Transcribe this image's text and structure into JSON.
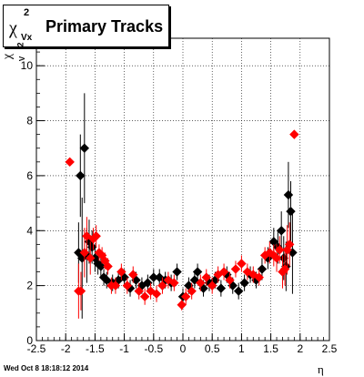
{
  "chart_data": {
    "type": "scatter",
    "title": {
      "symbol": "χ",
      "sup": "2",
      "sub": "Vx",
      "text": "Primary Tracks"
    },
    "ylabel": {
      "symbol": "χ",
      "sup": "2",
      "sub": "V"
    },
    "xlabel": "η",
    "timestamp": "Wed Oct  8 18:18:12 2014",
    "xlim": [
      -2.5,
      2.5
    ],
    "ylim": [
      0,
      11
    ],
    "xticks_labeled": [
      "-2.5",
      "-2",
      "-1.5",
      "-1",
      "-0.5",
      "0",
      "0.5",
      "1",
      "1.5",
      "2",
      "2.5"
    ],
    "yticks_labeled": [
      "0",
      "2",
      "4",
      "6",
      "8",
      "10"
    ],
    "grid": true,
    "marker": "diamond",
    "colors": {
      "black_series": "#000000",
      "red_series": "#ff0000"
    },
    "series": [
      {
        "color": "#000000",
        "points": [
          {
            "x": -1.78,
            "y": 3.2,
            "err": 1.1
          },
          {
            "x": -1.75,
            "y": 6.0,
            "err": 1.5
          },
          {
            "x": -1.72,
            "y": 3.0,
            "err": 2.2
          },
          {
            "x": -1.68,
            "y": 7.0,
            "err": 2.0
          },
          {
            "x": -1.64,
            "y": 3.1,
            "err": 1.0
          },
          {
            "x": -1.6,
            "y": 3.6,
            "err": 0.8
          },
          {
            "x": -1.55,
            "y": 3.4,
            "err": 0.6
          },
          {
            "x": -1.5,
            "y": 3.0,
            "err": 0.5
          },
          {
            "x": -1.45,
            "y": 2.8,
            "err": 0.4
          },
          {
            "x": -1.4,
            "y": 2.7,
            "err": 0.4
          },
          {
            "x": -1.35,
            "y": 2.3,
            "err": 0.3
          },
          {
            "x": -1.3,
            "y": 2.2,
            "err": 0.3
          },
          {
            "x": -1.2,
            "y": 2.1,
            "err": 0.3
          },
          {
            "x": -1.1,
            "y": 2.2,
            "err": 0.3
          },
          {
            "x": -1.0,
            "y": 2.3,
            "err": 0.3
          },
          {
            "x": -0.9,
            "y": 1.9,
            "err": 0.3
          },
          {
            "x": -0.8,
            "y": 2.2,
            "err": 0.3
          },
          {
            "x": -0.7,
            "y": 2.0,
            "err": 0.3
          },
          {
            "x": -0.6,
            "y": 2.1,
            "err": 0.3
          },
          {
            "x": -0.5,
            "y": 2.3,
            "err": 0.3
          },
          {
            "x": -0.4,
            "y": 2.3,
            "err": 0.3
          },
          {
            "x": -0.3,
            "y": 2.2,
            "err": 0.3
          },
          {
            "x": -0.2,
            "y": 2.1,
            "err": 0.3
          },
          {
            "x": -0.1,
            "y": 2.5,
            "err": 0.3
          },
          {
            "x": 0.0,
            "y": 1.6,
            "err": 0.3
          },
          {
            "x": 0.1,
            "y": 2.0,
            "err": 0.3
          },
          {
            "x": 0.2,
            "y": 2.2,
            "err": 0.3
          },
          {
            "x": 0.25,
            "y": 2.5,
            "err": 0.3
          },
          {
            "x": 0.35,
            "y": 1.9,
            "err": 0.3
          },
          {
            "x": 0.45,
            "y": 2.1,
            "err": 0.3
          },
          {
            "x": 0.55,
            "y": 2.2,
            "err": 0.3
          },
          {
            "x": 0.65,
            "y": 1.9,
            "err": 0.3
          },
          {
            "x": 0.75,
            "y": 2.4,
            "err": 0.3
          },
          {
            "x": 0.85,
            "y": 2.0,
            "err": 0.3
          },
          {
            "x": 0.95,
            "y": 1.8,
            "err": 0.3
          },
          {
            "x": 1.05,
            "y": 2.1,
            "err": 0.3
          },
          {
            "x": 1.15,
            "y": 2.4,
            "err": 0.3
          },
          {
            "x": 1.25,
            "y": 2.2,
            "err": 0.3
          },
          {
            "x": 1.35,
            "y": 2.6,
            "err": 0.4
          },
          {
            "x": 1.45,
            "y": 3.0,
            "err": 0.4
          },
          {
            "x": 1.55,
            "y": 3.6,
            "err": 0.5
          },
          {
            "x": 1.62,
            "y": 3.4,
            "err": 0.6
          },
          {
            "x": 1.68,
            "y": 4.0,
            "err": 0.7
          },
          {
            "x": 1.72,
            "y": 3.0,
            "err": 0.8
          },
          {
            "x": 1.76,
            "y": 2.7,
            "err": 0.9
          },
          {
            "x": 1.8,
            "y": 5.3,
            "err": 1.2
          },
          {
            "x": 1.84,
            "y": 4.7,
            "err": 1.1
          },
          {
            "x": 1.87,
            "y": 3.2,
            "err": 1.5
          }
        ]
      },
      {
        "color": "#ff0000",
        "points": [
          {
            "x": -1.93,
            "y": 6.5,
            "err": 0.0
          },
          {
            "x": -1.78,
            "y": 1.8,
            "err": 1.0
          },
          {
            "x": -1.74,
            "y": 1.8,
            "err": 0.7
          },
          {
            "x": -1.68,
            "y": 3.2,
            "err": 0.9
          },
          {
            "x": -1.64,
            "y": 3.8,
            "err": 0.7
          },
          {
            "x": -1.58,
            "y": 3.0,
            "err": 0.6
          },
          {
            "x": -1.53,
            "y": 3.7,
            "err": 0.4
          },
          {
            "x": -1.48,
            "y": 3.8,
            "err": 0.4
          },
          {
            "x": -1.43,
            "y": 3.2,
            "err": 0.3
          },
          {
            "x": -1.38,
            "y": 3.1,
            "err": 0.3
          },
          {
            "x": -1.33,
            "y": 2.9,
            "err": 0.3
          },
          {
            "x": -1.28,
            "y": 2.7,
            "err": 0.3
          },
          {
            "x": -1.22,
            "y": 2.0,
            "err": 0.3
          },
          {
            "x": -1.15,
            "y": 2.0,
            "err": 0.3
          },
          {
            "x": -1.05,
            "y": 2.5,
            "err": 0.3
          },
          {
            "x": -0.95,
            "y": 2.0,
            "err": 0.3
          },
          {
            "x": -0.85,
            "y": 2.4,
            "err": 0.3
          },
          {
            "x": -0.75,
            "y": 1.8,
            "err": 0.3
          },
          {
            "x": -0.65,
            "y": 1.6,
            "err": 0.3
          },
          {
            "x": -0.55,
            "y": 1.8,
            "err": 0.3
          },
          {
            "x": -0.45,
            "y": 1.7,
            "err": 0.3
          },
          {
            "x": -0.35,
            "y": 2.0,
            "err": 0.3
          },
          {
            "x": -0.25,
            "y": 2.2,
            "err": 0.3
          },
          {
            "x": -0.15,
            "y": 2.1,
            "err": 0.3
          },
          {
            "x": -0.02,
            "y": 1.3,
            "err": 0.2
          },
          {
            "x": 0.05,
            "y": 1.6,
            "err": 0.3
          },
          {
            "x": 0.15,
            "y": 1.8,
            "err": 0.3
          },
          {
            "x": 0.3,
            "y": 2.1,
            "err": 0.3
          },
          {
            "x": 0.4,
            "y": 2.3,
            "err": 0.3
          },
          {
            "x": 0.5,
            "y": 2.0,
            "err": 0.3
          },
          {
            "x": 0.6,
            "y": 2.4,
            "err": 0.3
          },
          {
            "x": 0.7,
            "y": 2.5,
            "err": 0.3
          },
          {
            "x": 0.8,
            "y": 2.2,
            "err": 0.3
          },
          {
            "x": 0.9,
            "y": 2.6,
            "err": 0.3
          },
          {
            "x": 1.0,
            "y": 2.8,
            "err": 0.3
          },
          {
            "x": 1.1,
            "y": 2.5,
            "err": 0.3
          },
          {
            "x": 1.2,
            "y": 2.4,
            "err": 0.3
          },
          {
            "x": 1.3,
            "y": 2.3,
            "err": 0.3
          },
          {
            "x": 1.4,
            "y": 3.1,
            "err": 0.3
          },
          {
            "x": 1.48,
            "y": 3.2,
            "err": 0.4
          },
          {
            "x": 1.55,
            "y": 3.1,
            "err": 0.4
          },
          {
            "x": 1.6,
            "y": 3.0,
            "err": 0.5
          },
          {
            "x": 1.65,
            "y": 3.3,
            "err": 0.5
          },
          {
            "x": 1.7,
            "y": 2.5,
            "err": 0.6
          },
          {
            "x": 1.74,
            "y": 2.6,
            "err": 0.6
          },
          {
            "x": 1.78,
            "y": 3.3,
            "err": 0.9
          },
          {
            "x": 1.82,
            "y": 3.5,
            "err": 0.8
          },
          {
            "x": 1.9,
            "y": 7.5,
            "err": 0.0
          }
        ]
      }
    ]
  }
}
